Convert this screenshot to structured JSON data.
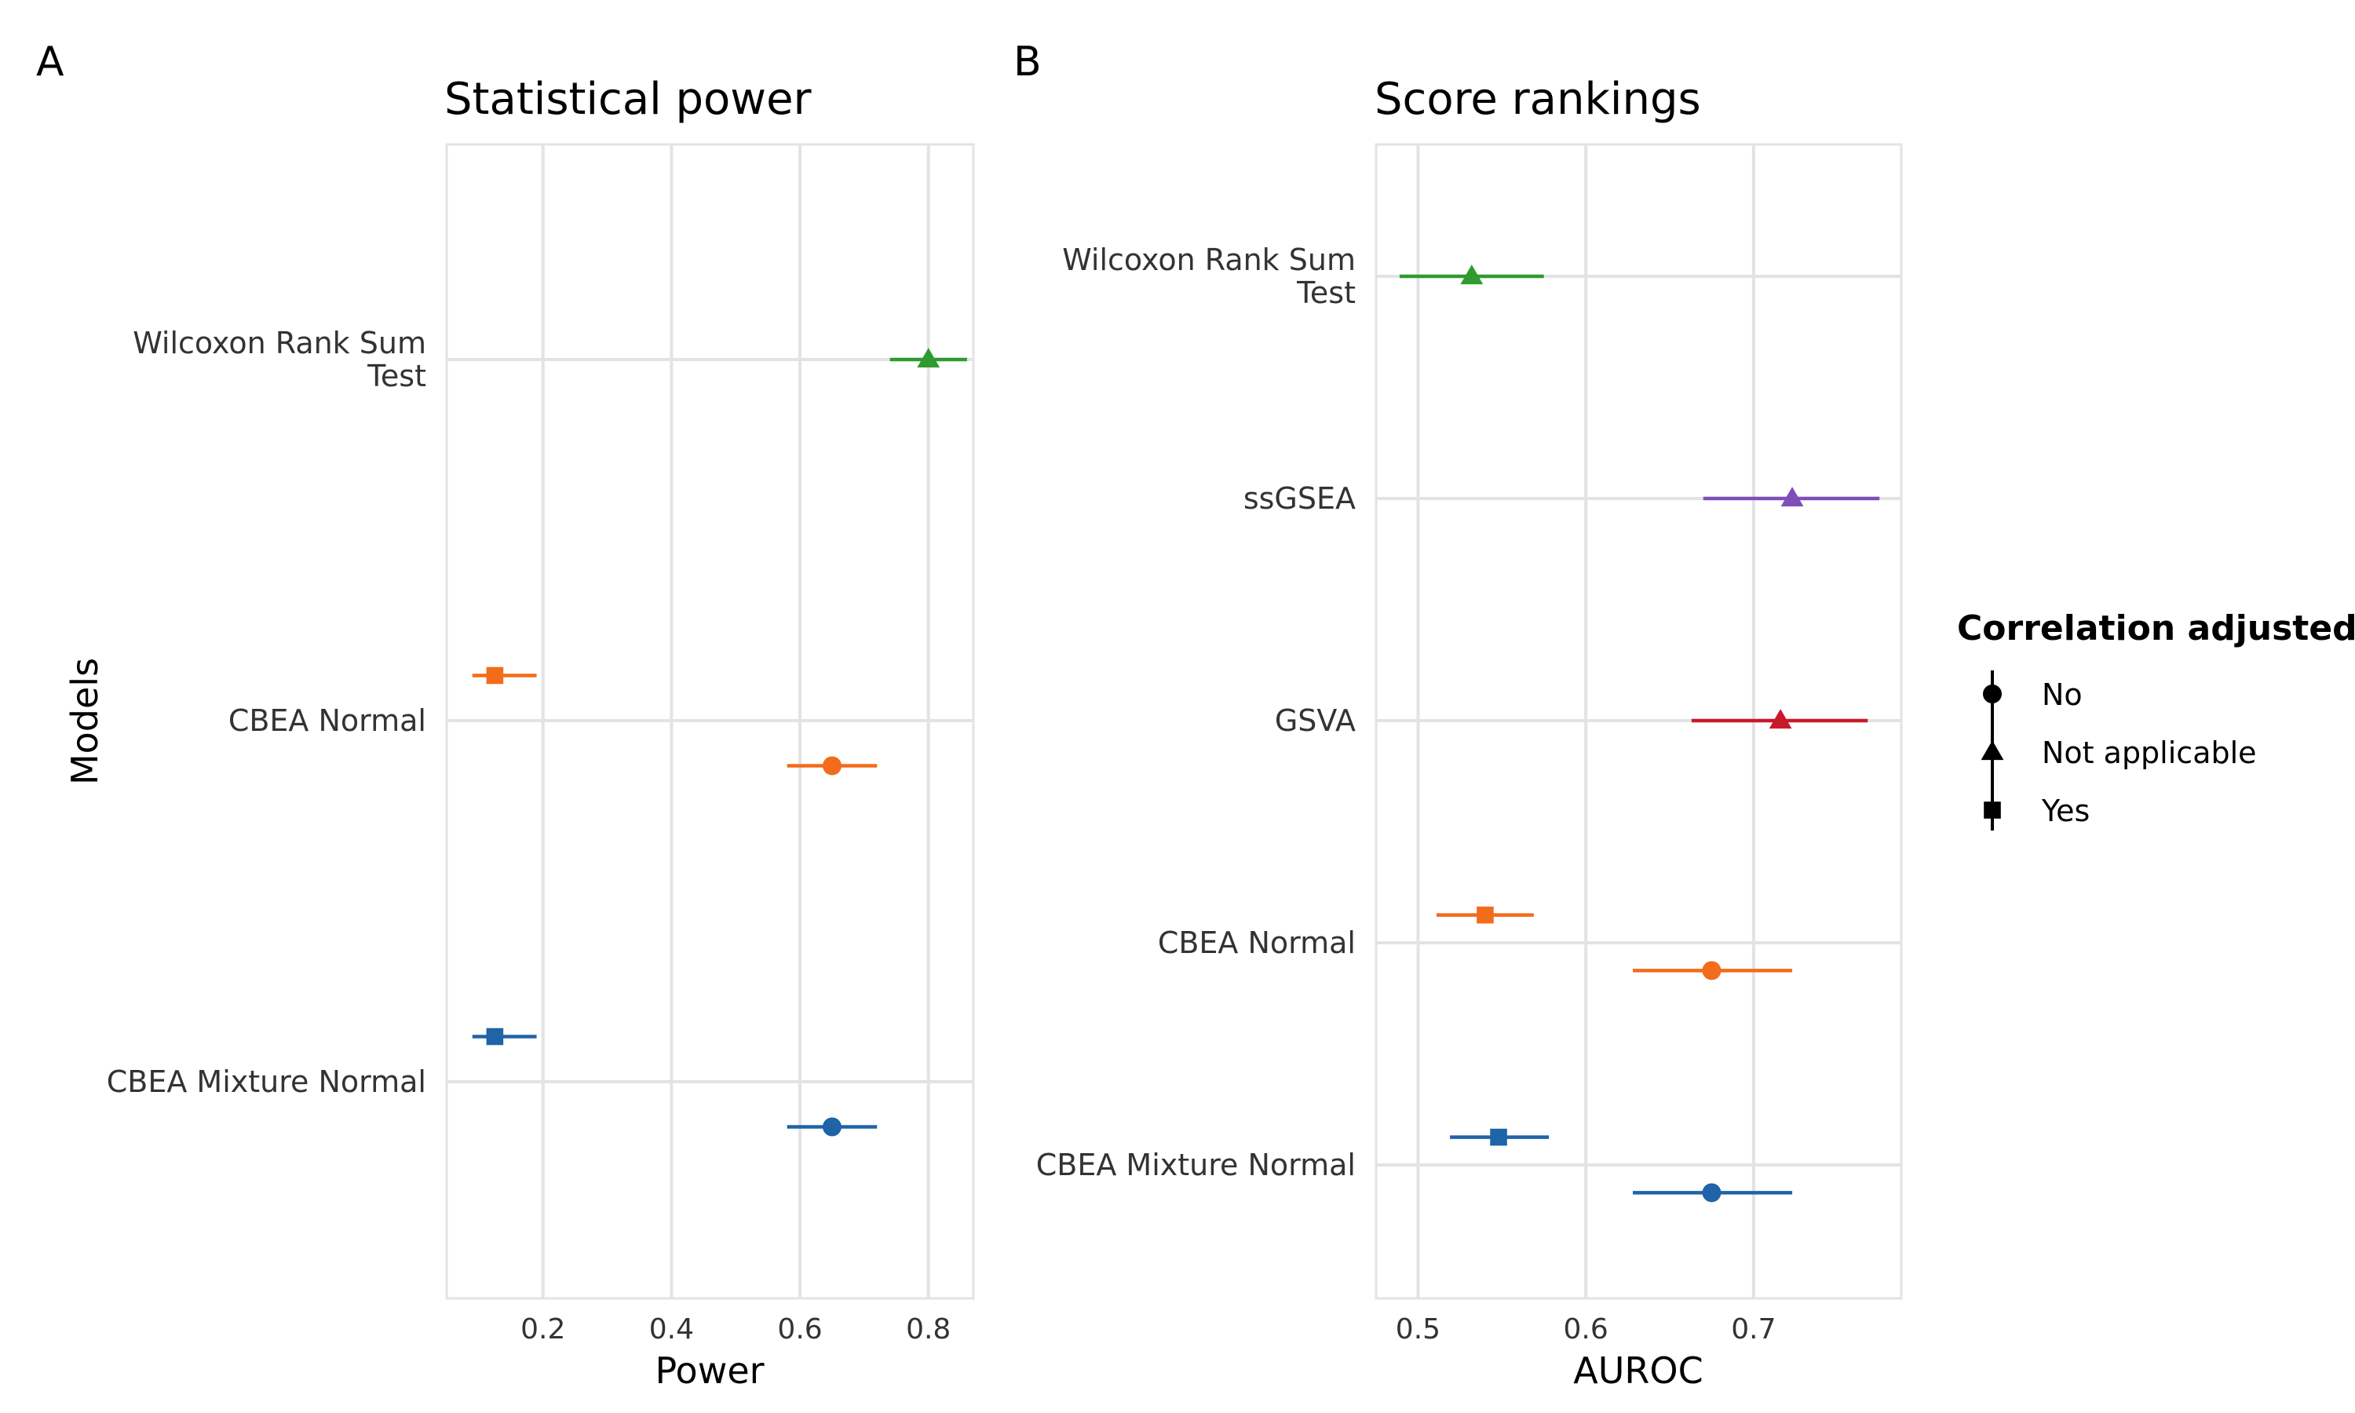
{
  "figure": {
    "panel_labels": [
      "A",
      "B"
    ]
  },
  "legend": {
    "title": "Correlation adjusted",
    "items": [
      {
        "label": "No",
        "shape": "circle"
      },
      {
        "label": "Not applicable",
        "shape": "triangle"
      },
      {
        "label": "Yes",
        "shape": "square"
      }
    ]
  },
  "chart_data": [
    {
      "type": "scatter",
      "subtype": "point-range",
      "title": "Statistical power",
      "xlabel": "Power",
      "ylabel": "Models",
      "xlim": [
        0.05,
        0.87
      ],
      "xticks": [
        0.2,
        0.4,
        0.6,
        0.8
      ],
      "xtick_labels": [
        "0.2",
        "0.4",
        "0.6",
        "0.8"
      ],
      "grid": true,
      "categories": [
        {
          "label_lines": [
            "Wilcoxon Rank Sum",
            "Test"
          ]
        },
        {
          "label_lines": [
            "CBEA Normal"
          ]
        },
        {
          "label_lines": [
            "CBEA Mixture Normal"
          ]
        }
      ],
      "points": [
        {
          "category": 0,
          "offset": 0.0,
          "x": 0.8,
          "low": 0.74,
          "high": 0.86,
          "shape": "triangle",
          "adjusted": "Not applicable",
          "color": "#2E9A2F"
        },
        {
          "category": 1,
          "offset": -0.125,
          "x": 0.125,
          "low": 0.09,
          "high": 0.19,
          "shape": "square",
          "adjusted": "Yes",
          "color": "#F26C1B"
        },
        {
          "category": 1,
          "offset": 0.125,
          "x": 0.65,
          "low": 0.58,
          "high": 0.72,
          "shape": "circle",
          "adjusted": "No",
          "color": "#F26C1B"
        },
        {
          "category": 2,
          "offset": -0.125,
          "x": 0.125,
          "low": 0.09,
          "high": 0.19,
          "shape": "square",
          "adjusted": "Yes",
          "color": "#1F63A8"
        },
        {
          "category": 2,
          "offset": 0.125,
          "x": 0.65,
          "low": 0.58,
          "high": 0.72,
          "shape": "circle",
          "adjusted": "No",
          "color": "#1F63A8"
        }
      ]
    },
    {
      "type": "scatter",
      "subtype": "point-range",
      "title": "Score rankings",
      "xlabel": "AUROC",
      "ylabel": "",
      "xlim": [
        0.475,
        0.788
      ],
      "xticks": [
        0.5,
        0.6,
        0.7
      ],
      "xtick_labels": [
        "0.5",
        "0.6",
        "0.7"
      ],
      "grid": true,
      "categories": [
        {
          "label_lines": [
            "Wilcoxon Rank Sum",
            "Test"
          ]
        },
        {
          "label_lines": [
            "ssGSEA"
          ]
        },
        {
          "label_lines": [
            "GSVA"
          ]
        },
        {
          "label_lines": [
            "CBEA Normal"
          ]
        },
        {
          "label_lines": [
            "CBEA Mixture Normal"
          ]
        }
      ],
      "points": [
        {
          "category": 0,
          "offset": 0.0,
          "x": 0.532,
          "low": 0.489,
          "high": 0.575,
          "shape": "triangle",
          "adjusted": "Not applicable",
          "color": "#2E9A2F"
        },
        {
          "category": 1,
          "offset": 0.0,
          "x": 0.723,
          "low": 0.67,
          "high": 0.775,
          "shape": "triangle",
          "adjusted": "Not applicable",
          "color": "#7E4FB7"
        },
        {
          "category": 2,
          "offset": 0.0,
          "x": 0.716,
          "low": 0.663,
          "high": 0.768,
          "shape": "triangle",
          "adjusted": "Not applicable",
          "color": "#C8192A"
        },
        {
          "category": 3,
          "offset": -0.125,
          "x": 0.54,
          "low": 0.511,
          "high": 0.569,
          "shape": "square",
          "adjusted": "Yes",
          "color": "#F26C1B"
        },
        {
          "category": 3,
          "offset": 0.125,
          "x": 0.675,
          "low": 0.628,
          "high": 0.723,
          "shape": "circle",
          "adjusted": "No",
          "color": "#F26C1B"
        },
        {
          "category": 4,
          "offset": -0.125,
          "x": 0.548,
          "low": 0.519,
          "high": 0.578,
          "shape": "square",
          "adjusted": "Yes",
          "color": "#1F63A8"
        },
        {
          "category": 4,
          "offset": 0.125,
          "x": 0.675,
          "low": 0.628,
          "high": 0.723,
          "shape": "circle",
          "adjusted": "No",
          "color": "#1F63A8"
        }
      ]
    }
  ]
}
